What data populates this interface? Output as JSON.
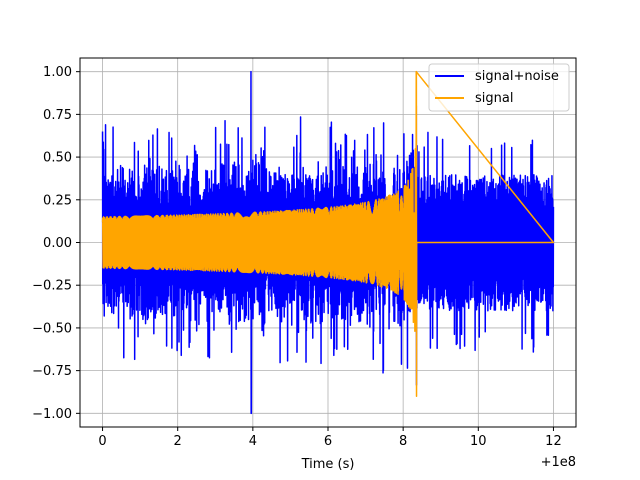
{
  "chart_data": {
    "type": "line",
    "title": "",
    "xlabel": "Time (s)",
    "ylabel": "",
    "x_offset_label": "+1e8",
    "xlim": [
      -0.6,
      12.6
    ],
    "ylim": [
      -1.08,
      1.08
    ],
    "xticks": [
      0,
      2,
      4,
      6,
      8,
      10,
      12
    ],
    "xtick_labels": [
      "0",
      "2",
      "4",
      "6",
      "8",
      "10",
      "12"
    ],
    "yticks": [
      -1.0,
      -0.75,
      -0.5,
      -0.25,
      0.0,
      0.25,
      0.5,
      0.75,
      1.0
    ],
    "ytick_labels": [
      "−1.00",
      "−0.75",
      "−0.50",
      "−0.25",
      "0.00",
      "0.25",
      "0.50",
      "0.75",
      "1.00"
    ],
    "grid": true,
    "legend": "top-right",
    "series": [
      {
        "name": "signal+noise",
        "color": "#0000ff",
        "x_range": [
          0,
          12
        ],
        "noise_envelope": [
          0.4,
          0.65
        ],
        "peak_max": {
          "x": 3.95,
          "y": 1.0
        },
        "peak_min": {
          "x": 3.95,
          "y": -1.0
        }
      },
      {
        "name": "signal",
        "color": "#ffa500",
        "x_range": [
          0,
          12
        ],
        "envelope_start": 0.15,
        "envelope_near_merger": 0.35,
        "merger_x": 8.36,
        "peak_max": 1.0,
        "peak_min": -0.9,
        "value_after_merger": 0.0
      }
    ]
  }
}
